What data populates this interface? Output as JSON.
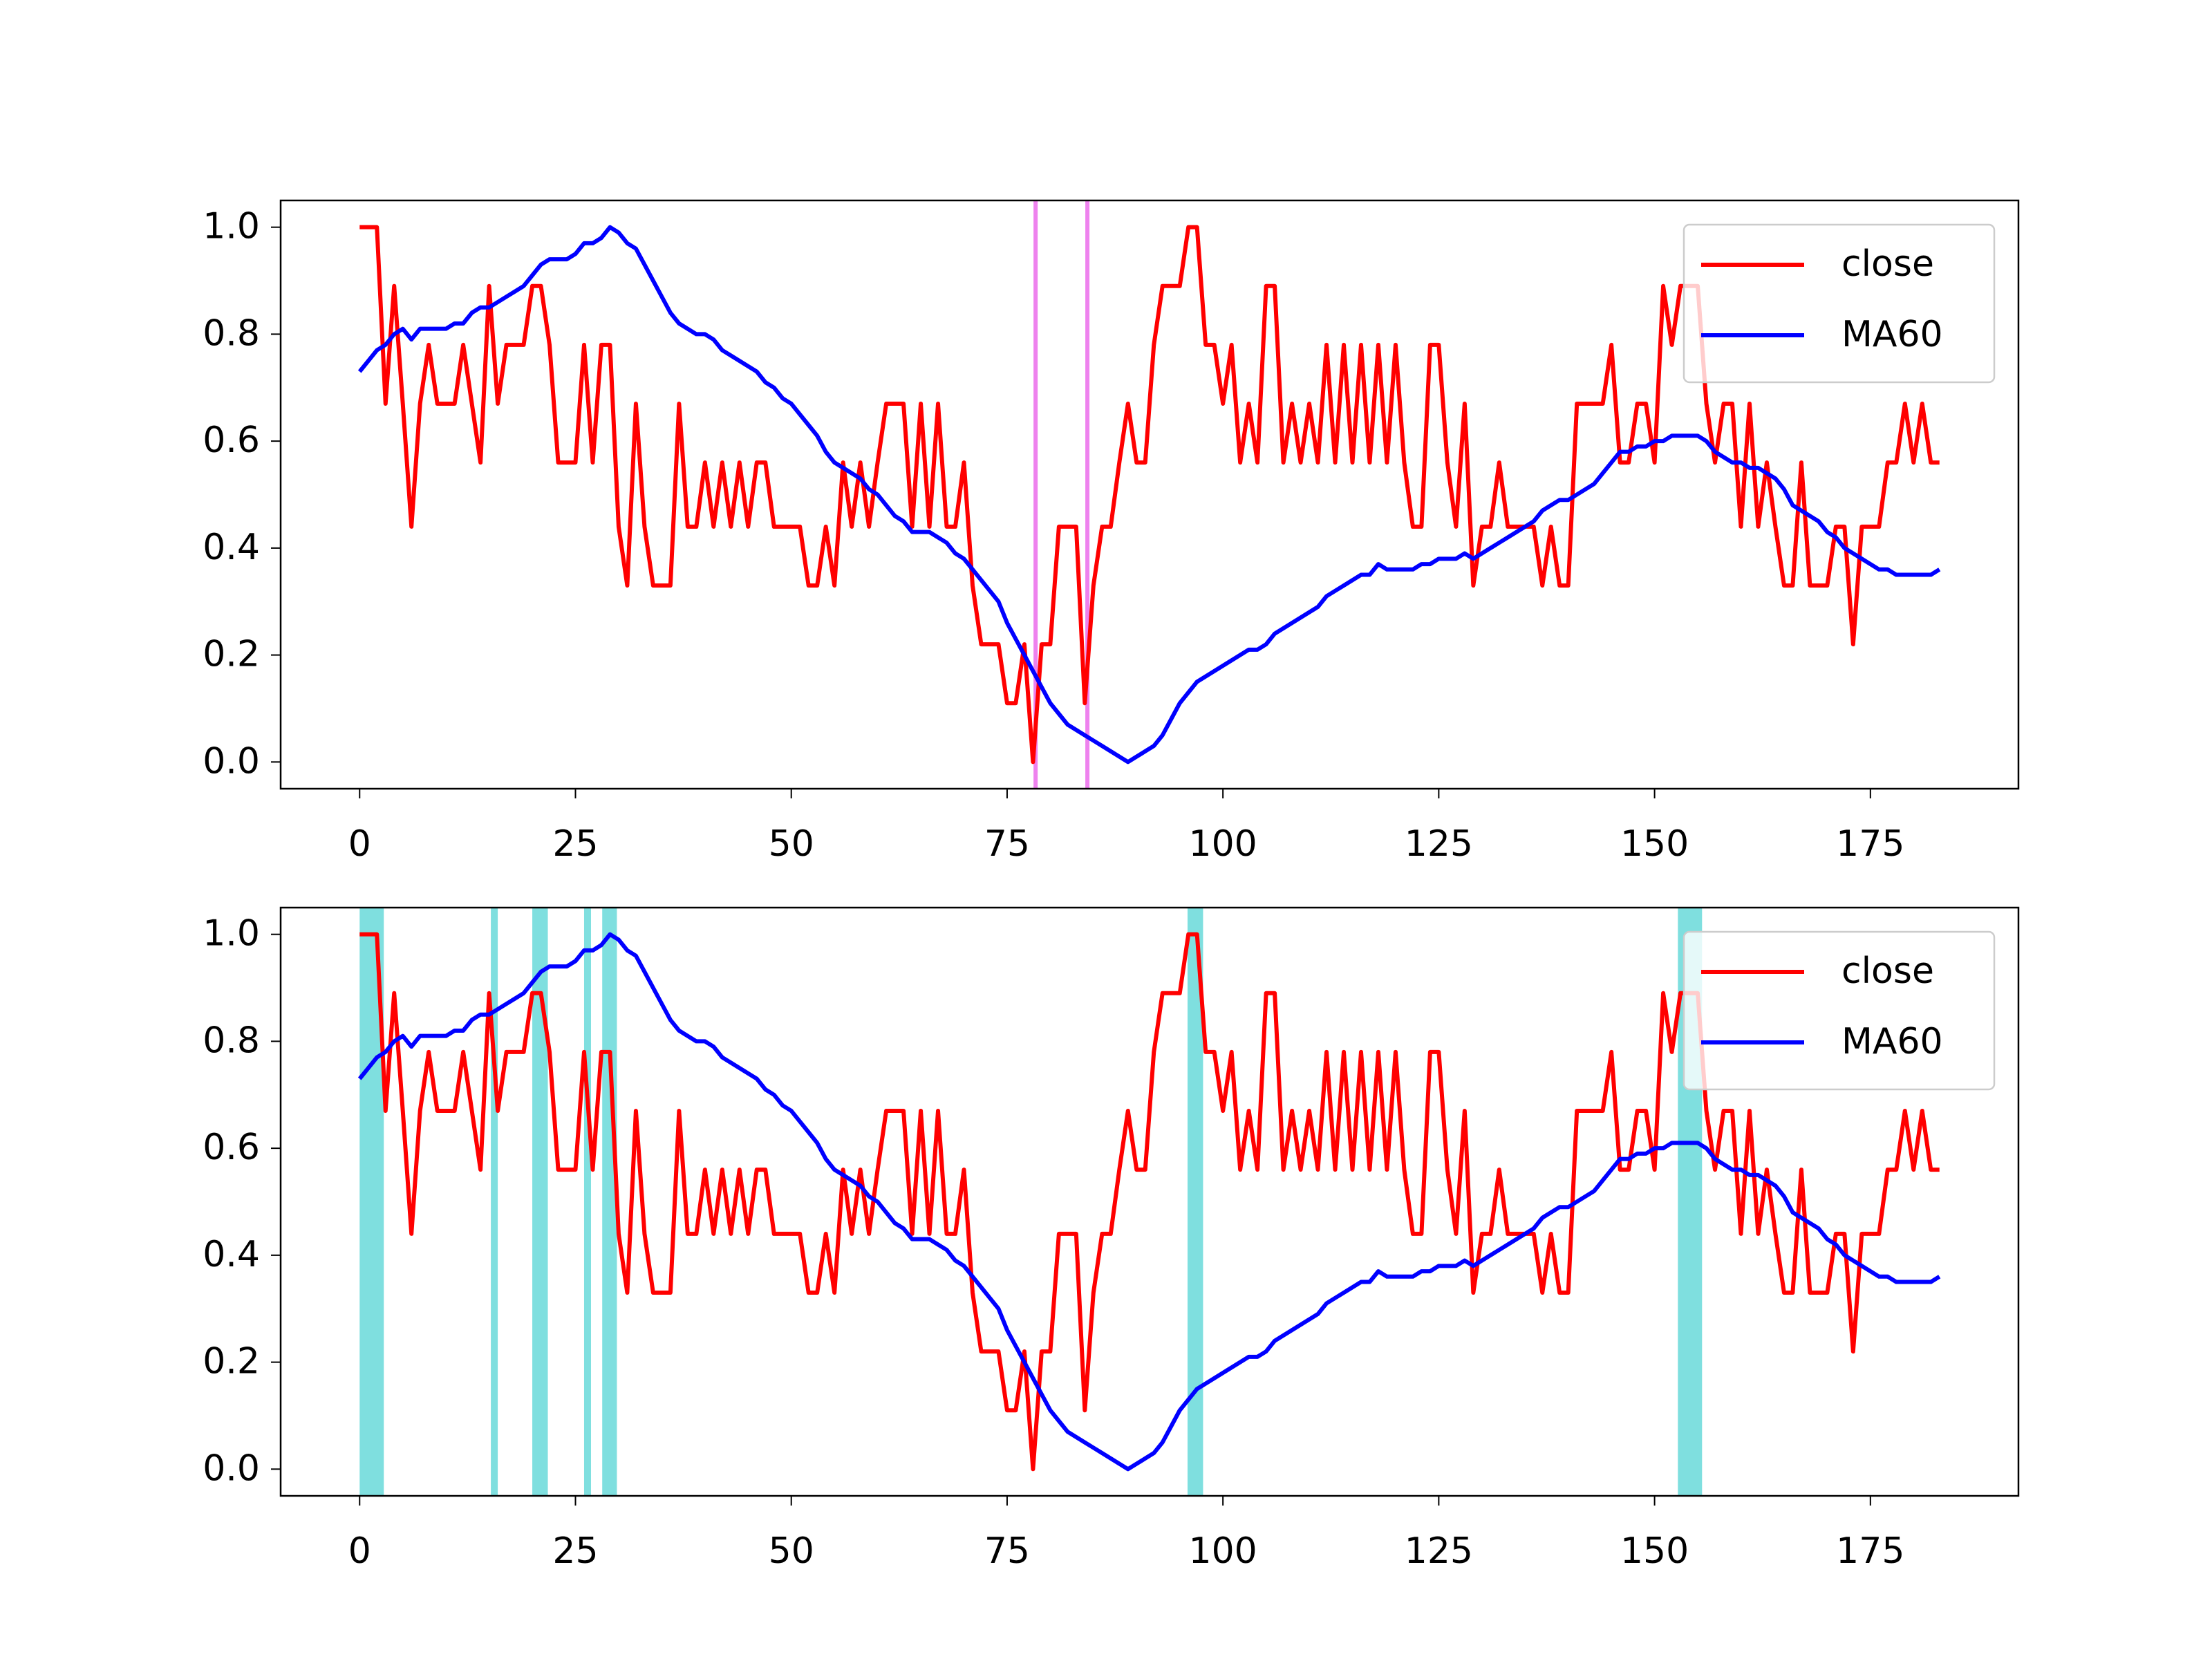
{
  "chart_data": [
    {
      "type": "line",
      "x": [
        0,
        1,
        2,
        3,
        4,
        5,
        6,
        7,
        8,
        9,
        10,
        11,
        12,
        13,
        14,
        15,
        16,
        17,
        18,
        19,
        20,
        21,
        22,
        23,
        24,
        25,
        26,
        27,
        28,
        29,
        30,
        31,
        32,
        33,
        34,
        35,
        36,
        37,
        38,
        39,
        40,
        41,
        42,
        43,
        44,
        45,
        46,
        47,
        48,
        49,
        50,
        51,
        52,
        53,
        54,
        55,
        56,
        57,
        58,
        59,
        60,
        61,
        62,
        63,
        64,
        65,
        66,
        67,
        68,
        69,
        70,
        71,
        72,
        73,
        74,
        75,
        76,
        77,
        78,
        79,
        80,
        81,
        82,
        83,
        84,
        85,
        86,
        87,
        88,
        89,
        90,
        91,
        92,
        93,
        94,
        95,
        96,
        97,
        98,
        99,
        100,
        101,
        102,
        103,
        104,
        105,
        106,
        107,
        108,
        109,
        110,
        111,
        112,
        113,
        114,
        115,
        116,
        117,
        118,
        119,
        120,
        121,
        122,
        123,
        124,
        125,
        126,
        127,
        128,
        129,
        130,
        131,
        132,
        133,
        134,
        135,
        136,
        137,
        138,
        139,
        140,
        141,
        142,
        143,
        144,
        145,
        146,
        147,
        148,
        149,
        150,
        151,
        152,
        153,
        154,
        155,
        156,
        157,
        158,
        159,
        160,
        161,
        162,
        163,
        164,
        165,
        166,
        167,
        168,
        169,
        170,
        171,
        172,
        173,
        174,
        175,
        176,
        177,
        178,
        179,
        180,
        181,
        182,
        183
      ],
      "series": [
        {
          "name": "close",
          "color": "#ff0000",
          "values": [
            1,
            1,
            1,
            0.67,
            0.89,
            0.67,
            0.44,
            0.67,
            0.78,
            0.67,
            0.67,
            0.67,
            0.78,
            0.67,
            0.56,
            0.89,
            0.67,
            0.78,
            0.78,
            0.78,
            0.89,
            0.89,
            0.78,
            0.56,
            0.56,
            0.56,
            0.78,
            0.56,
            0.78,
            0.78,
            0.44,
            0.33,
            0.67,
            0.44,
            0.33,
            0.33,
            0.33,
            0.67,
            0.44,
            0.44,
            0.56,
            0.44,
            0.56,
            0.44,
            0.56,
            0.44,
            0.56,
            0.56,
            0.44,
            0.44,
            0.44,
            0.44,
            0.33,
            0.33,
            0.44,
            0.33,
            0.56,
            0.44,
            0.56,
            0.44,
            0.56,
            0.67,
            0.67,
            0.67,
            0.44,
            0.67,
            0.44,
            0.67,
            0.44,
            0.44,
            0.56,
            0.33,
            0.22,
            0.22,
            0.22,
            0.11,
            0.11,
            0.22,
            0,
            0.22,
            0.22,
            0.44,
            0.44,
            0.44,
            0.11,
            0.33,
            0.44,
            0.44,
            0.56,
            0.67,
            0.56,
            0.56,
            0.78,
            0.89,
            0.89,
            0.89,
            1,
            1,
            0.78,
            0.78,
            0.67,
            0.78,
            0.56,
            0.67,
            0.56,
            0.89,
            0.89,
            0.56,
            0.67,
            0.56,
            0.67,
            0.56,
            0.78,
            0.56,
            0.78,
            0.56,
            0.78,
            0.56,
            0.78,
            0.56,
            0.78,
            0.56,
            0.44,
            0.44,
            0.78,
            0.78,
            0.56,
            0.44,
            0.67,
            0.33,
            0.44,
            0.44,
            0.56,
            0.44,
            0.44,
            0.44,
            0.44,
            0.33,
            0.44,
            0.33,
            0.33,
            0.67,
            0.67,
            0.67,
            0.67,
            0.78,
            0.56,
            0.56,
            0.67,
            0.67,
            0.56,
            0.89,
            0.78,
            0.89,
            0.89,
            0.89,
            0.67,
            0.56,
            0.67,
            0.67,
            0.44,
            0.67,
            0.44,
            0.56,
            0.44,
            0.33,
            0.33,
            0.56,
            0.33,
            0.33,
            0.33,
            0.44,
            0.44,
            0.22,
            0.44,
            0.44,
            0.44,
            0.56,
            0.56,
            0.67,
            0.56,
            0.67,
            0.56,
            0.56
          ]
        },
        {
          "name": "MA60",
          "color": "#0000ff",
          "values": [
            0.73,
            0.75,
            0.77,
            0.78,
            0.8,
            0.81,
            0.79,
            0.81,
            0.81,
            0.81,
            0.81,
            0.82,
            0.82,
            0.84,
            0.85,
            0.85,
            0.86,
            0.87,
            0.88,
            0.89,
            0.91,
            0.93,
            0.94,
            0.94,
            0.94,
            0.95,
            0.97,
            0.97,
            0.98,
            1,
            0.99,
            0.97,
            0.96,
            0.93,
            0.9,
            0.87,
            0.84,
            0.82,
            0.81,
            0.8,
            0.8,
            0.79,
            0.77,
            0.76,
            0.75,
            0.74,
            0.73,
            0.71,
            0.7,
            0.68,
            0.67,
            0.65,
            0.63,
            0.61,
            0.58,
            0.56,
            0.55,
            0.54,
            0.53,
            0.51,
            0.5,
            0.48,
            0.46,
            0.45,
            0.43,
            0.43,
            0.43,
            0.42,
            0.41,
            0.39,
            0.38,
            0.36,
            0.34,
            0.32,
            0.3,
            0.26,
            0.23,
            0.2,
            0.17,
            0.14,
            0.11,
            0.09,
            0.07,
            0.06,
            0.05,
            0.04,
            0.03,
            0.02,
            0.01,
            0,
            0.01,
            0.02,
            0.03,
            0.05,
            0.08,
            0.11,
            0.13,
            0.15,
            0.16,
            0.17,
            0.18,
            0.19,
            0.2,
            0.21,
            0.21,
            0.22,
            0.24,
            0.25,
            0.26,
            0.27,
            0.28,
            0.29,
            0.31,
            0.32,
            0.33,
            0.34,
            0.35,
            0.35,
            0.37,
            0.36,
            0.36,
            0.36,
            0.36,
            0.37,
            0.37,
            0.38,
            0.38,
            0.38,
            0.39,
            0.38,
            0.39,
            0.4,
            0.41,
            0.42,
            0.43,
            0.44,
            0.45,
            0.47,
            0.48,
            0.49,
            0.49,
            0.5,
            0.51,
            0.52,
            0.54,
            0.56,
            0.58,
            0.58,
            0.59,
            0.59,
            0.6,
            0.6,
            0.61,
            0.61,
            0.61,
            0.61,
            0.6,
            0.58,
            0.57,
            0.56,
            0.56,
            0.55,
            0.55,
            0.54,
            0.53,
            0.51,
            0.48,
            0.47,
            0.46,
            0.45,
            0.43,
            0.42,
            0.4,
            0.39,
            0.38,
            0.37,
            0.36,
            0.36,
            0.35,
            0.35,
            0.35,
            0.35,
            0.35,
            0.36
          ]
        }
      ],
      "vlines": [
        78.3,
        84.3
      ],
      "vline_color": "#ee82ee",
      "xlim": [
        -9.15,
        192.15
      ],
      "ylim": [
        -0.05,
        1.05
      ],
      "xticks": [
        0,
        25,
        50,
        75,
        100,
        125,
        150,
        175
      ],
      "yticks": [
        {
          "value": 0,
          "label": "0.0"
        },
        0.2,
        0.4,
        0.6,
        0.8,
        {
          "value": 1,
          "label": "1.0"
        }
      ],
      "legend": "upper right"
    },
    {
      "type": "line",
      "x": [
        0,
        1,
        2,
        3,
        4,
        5,
        6,
        7,
        8,
        9,
        10,
        11,
        12,
        13,
        14,
        15,
        16,
        17,
        18,
        19,
        20,
        21,
        22,
        23,
        24,
        25,
        26,
        27,
        28,
        29,
        30,
        31,
        32,
        33,
        34,
        35,
        36,
        37,
        38,
        39,
        40,
        41,
        42,
        43,
        44,
        45,
        46,
        47,
        48,
        49,
        50,
        51,
        52,
        53,
        54,
        55,
        56,
        57,
        58,
        59,
        60,
        61,
        62,
        63,
        64,
        65,
        66,
        67,
        68,
        69,
        70,
        71,
        72,
        73,
        74,
        75,
        76,
        77,
        78,
        79,
        80,
        81,
        82,
        83,
        84,
        85,
        86,
        87,
        88,
        89,
        90,
        91,
        92,
        93,
        94,
        95,
        96,
        97,
        98,
        99,
        100,
        101,
        102,
        103,
        104,
        105,
        106,
        107,
        108,
        109,
        110,
        111,
        112,
        113,
        114,
        115,
        116,
        117,
        118,
        119,
        120,
        121,
        122,
        123,
        124,
        125,
        126,
        127,
        128,
        129,
        130,
        131,
        132,
        133,
        134,
        135,
        136,
        137,
        138,
        139,
        140,
        141,
        142,
        143,
        144,
        145,
        146,
        147,
        148,
        149,
        150,
        151,
        152,
        153,
        154,
        155,
        156,
        157,
        158,
        159,
        160,
        161,
        162,
        163,
        164,
        165,
        166,
        167,
        168,
        169,
        170,
        171,
        172,
        173,
        174,
        175,
        176,
        177,
        178,
        179,
        180,
        181,
        182,
        183
      ],
      "series": [
        {
          "name": "close",
          "color": "#ff0000",
          "values": [
            1,
            1,
            1,
            0.67,
            0.89,
            0.67,
            0.44,
            0.67,
            0.78,
            0.67,
            0.67,
            0.67,
            0.78,
            0.67,
            0.56,
            0.89,
            0.67,
            0.78,
            0.78,
            0.78,
            0.89,
            0.89,
            0.78,
            0.56,
            0.56,
            0.56,
            0.78,
            0.56,
            0.78,
            0.78,
            0.44,
            0.33,
            0.67,
            0.44,
            0.33,
            0.33,
            0.33,
            0.67,
            0.44,
            0.44,
            0.56,
            0.44,
            0.56,
            0.44,
            0.56,
            0.44,
            0.56,
            0.56,
            0.44,
            0.44,
            0.44,
            0.44,
            0.33,
            0.33,
            0.44,
            0.33,
            0.56,
            0.44,
            0.56,
            0.44,
            0.56,
            0.67,
            0.67,
            0.67,
            0.44,
            0.67,
            0.44,
            0.67,
            0.44,
            0.44,
            0.56,
            0.33,
            0.22,
            0.22,
            0.22,
            0.11,
            0.11,
            0.22,
            0,
            0.22,
            0.22,
            0.44,
            0.44,
            0.44,
            0.11,
            0.33,
            0.44,
            0.44,
            0.56,
            0.67,
            0.56,
            0.56,
            0.78,
            0.89,
            0.89,
            0.89,
            1,
            1,
            0.78,
            0.78,
            0.67,
            0.78,
            0.56,
            0.67,
            0.56,
            0.89,
            0.89,
            0.56,
            0.67,
            0.56,
            0.67,
            0.56,
            0.78,
            0.56,
            0.78,
            0.56,
            0.78,
            0.56,
            0.78,
            0.56,
            0.78,
            0.56,
            0.44,
            0.44,
            0.78,
            0.78,
            0.56,
            0.44,
            0.67,
            0.33,
            0.44,
            0.44,
            0.56,
            0.44,
            0.44,
            0.44,
            0.44,
            0.33,
            0.44,
            0.33,
            0.33,
            0.67,
            0.67,
            0.67,
            0.67,
            0.78,
            0.56,
            0.56,
            0.67,
            0.67,
            0.56,
            0.89,
            0.78,
            0.89,
            0.89,
            0.89,
            0.67,
            0.56,
            0.67,
            0.67,
            0.44,
            0.67,
            0.44,
            0.56,
            0.44,
            0.33,
            0.33,
            0.56,
            0.33,
            0.33,
            0.33,
            0.44,
            0.44,
            0.22,
            0.44,
            0.44,
            0.44,
            0.56,
            0.56,
            0.67,
            0.56,
            0.67,
            0.56,
            0.56
          ]
        },
        {
          "name": "MA60",
          "color": "#0000ff",
          "values": [
            0.73,
            0.75,
            0.77,
            0.78,
            0.8,
            0.81,
            0.79,
            0.81,
            0.81,
            0.81,
            0.81,
            0.82,
            0.82,
            0.84,
            0.85,
            0.85,
            0.86,
            0.87,
            0.88,
            0.89,
            0.91,
            0.93,
            0.94,
            0.94,
            0.94,
            0.95,
            0.97,
            0.97,
            0.98,
            1,
            0.99,
            0.97,
            0.96,
            0.93,
            0.9,
            0.87,
            0.84,
            0.82,
            0.81,
            0.8,
            0.8,
            0.79,
            0.77,
            0.76,
            0.75,
            0.74,
            0.73,
            0.71,
            0.7,
            0.68,
            0.67,
            0.65,
            0.63,
            0.61,
            0.58,
            0.56,
            0.55,
            0.54,
            0.53,
            0.51,
            0.5,
            0.48,
            0.46,
            0.45,
            0.43,
            0.43,
            0.43,
            0.42,
            0.41,
            0.39,
            0.38,
            0.36,
            0.34,
            0.32,
            0.3,
            0.26,
            0.23,
            0.2,
            0.17,
            0.14,
            0.11,
            0.09,
            0.07,
            0.06,
            0.05,
            0.04,
            0.03,
            0.02,
            0.01,
            0,
            0.01,
            0.02,
            0.03,
            0.05,
            0.08,
            0.11,
            0.13,
            0.15,
            0.16,
            0.17,
            0.18,
            0.19,
            0.2,
            0.21,
            0.21,
            0.22,
            0.24,
            0.25,
            0.26,
            0.27,
            0.28,
            0.29,
            0.31,
            0.32,
            0.33,
            0.34,
            0.35,
            0.35,
            0.37,
            0.36,
            0.36,
            0.36,
            0.36,
            0.37,
            0.37,
            0.38,
            0.38,
            0.38,
            0.39,
            0.38,
            0.39,
            0.4,
            0.41,
            0.42,
            0.43,
            0.44,
            0.45,
            0.47,
            0.48,
            0.49,
            0.49,
            0.5,
            0.51,
            0.52,
            0.54,
            0.56,
            0.58,
            0.58,
            0.59,
            0.59,
            0.6,
            0.6,
            0.61,
            0.61,
            0.61,
            0.61,
            0.6,
            0.58,
            0.57,
            0.56,
            0.56,
            0.55,
            0.55,
            0.54,
            0.53,
            0.51,
            0.48,
            0.47,
            0.46,
            0.45,
            0.43,
            0.42,
            0.4,
            0.39,
            0.38,
            0.37,
            0.36,
            0.36,
            0.35,
            0.35,
            0.35,
            0.35,
            0.35,
            0.36
          ]
        }
      ],
      "spans": [
        [
          0,
          2.8
        ],
        [
          15.2,
          16
        ],
        [
          20,
          21.8
        ],
        [
          26,
          26.8
        ],
        [
          28.1,
          29.8
        ],
        [
          95.9,
          97.7
        ],
        [
          152.7,
          155.5
        ]
      ],
      "span_color": "#7fdfdf",
      "xlim": [
        -9.15,
        192.15
      ],
      "ylim": [
        -0.05,
        1.05
      ],
      "xticks": [
        0,
        25,
        50,
        75,
        100,
        125,
        150,
        175
      ],
      "yticks": [
        {
          "value": 0,
          "label": "0.0"
        },
        0.2,
        0.4,
        0.6,
        0.8,
        {
          "value": 1,
          "label": "1.0"
        }
      ],
      "legend": "upper right"
    }
  ]
}
